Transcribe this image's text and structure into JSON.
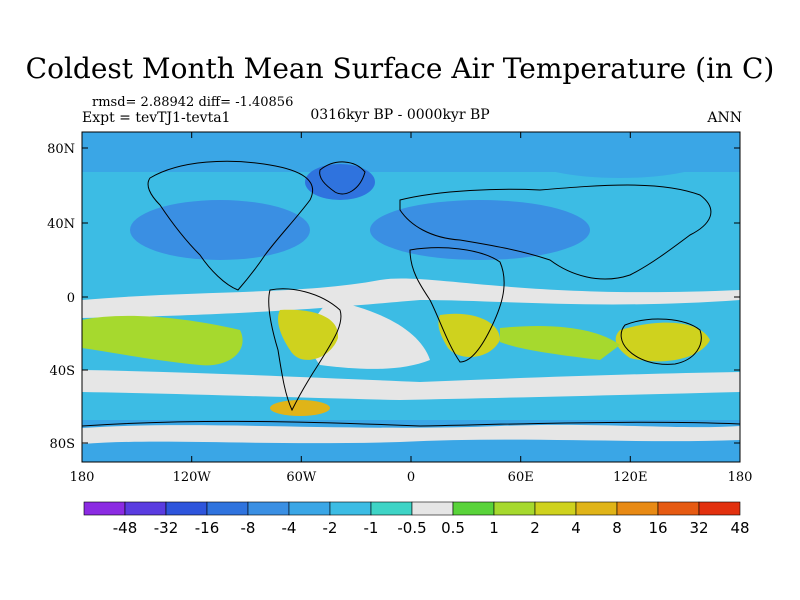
{
  "title": "Coldest Month Mean Surface Air Temperature (in C)",
  "stats": "rmsd= 2.88942 diff= -1.40856",
  "experiment": "Expt = tevTJ1-tevta1",
  "period": "0316kyr BP - 0000kyr BP",
  "season": "ANN",
  "lat_ticks": [
    "80N",
    "40N",
    "0",
    "40S",
    "80S"
  ],
  "lon_ticks": [
    "180",
    "120W",
    "60W",
    "0",
    "60E",
    "120E",
    "180"
  ],
  "colorbar": {
    "labels": [
      "-48",
      "-32",
      "-16",
      "-8",
      "-4",
      "-2",
      "-1",
      "-0.5",
      "0.5",
      "1",
      "2",
      "4",
      "8",
      "16",
      "32",
      "48"
    ],
    "colors": [
      "#8b2be2",
      "#5a3ce0",
      "#2e55dc",
      "#2f73de",
      "#3a8fe3",
      "#3aa6e6",
      "#3cbce4",
      "#3ed4c6",
      "#e6e6e6",
      "#59d33a",
      "#a6d92e",
      "#cfd21e",
      "#e0b418",
      "#e88a14",
      "#e65a12",
      "#e2300e"
    ]
  },
  "map_colors": {
    "land_outline": "#000000",
    "neutral": "#e6e6e6"
  }
}
